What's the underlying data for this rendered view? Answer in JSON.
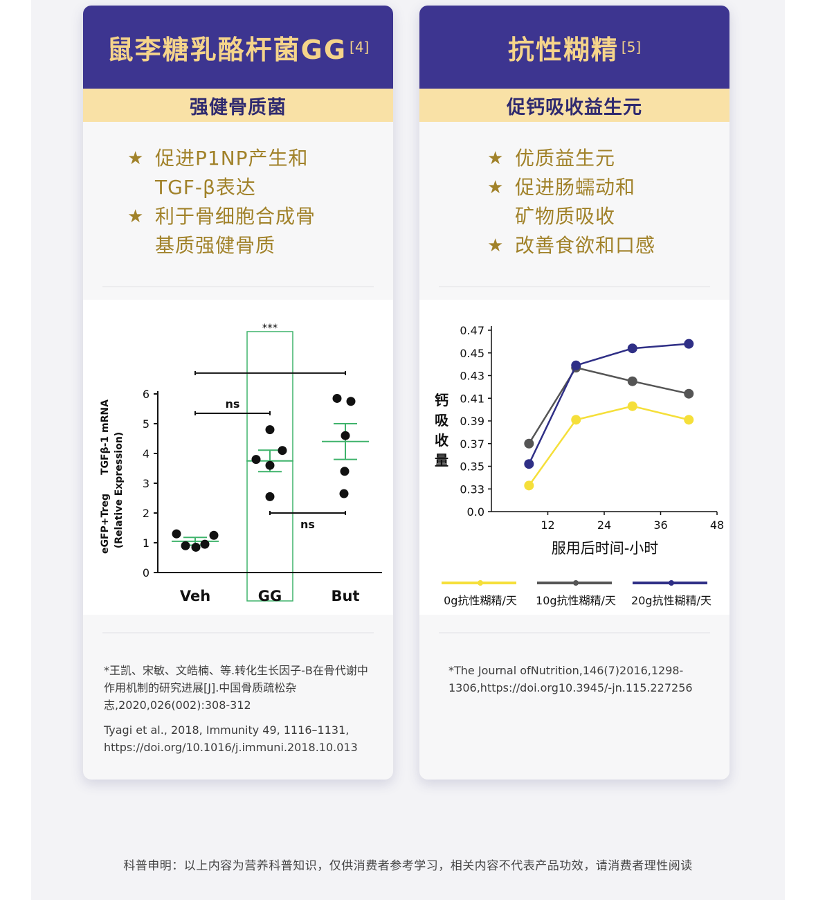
{
  "left_card": {
    "title": "鼠李糖乳酪杆菌GG",
    "title_ref": "[4]",
    "subtitle": "强健骨质菌",
    "bullets": [
      {
        "lines": [
          "促进P1NP产生和",
          "TGF-β表达"
        ]
      },
      {
        "lines": [
          "利于骨细胞合成骨",
          "基质强健骨质"
        ]
      }
    ],
    "refs": [
      "*王凯、宋敏、文皓楠、等.转化生长因子-B在骨代谢中作用机制的研究进展[J].中国骨质疏松杂志,2020,026(002):308-312",
      "Tyagi et al., 2018, Immunity 49, 1116–1131, https://doi.org/10.1016/j.immuni.2018.10.013"
    ]
  },
  "right_card": {
    "title": "抗性糊精",
    "title_ref": "[5]",
    "subtitle": "促钙吸收益生元",
    "bullets": [
      {
        "lines": [
          "优质益生元"
        ]
      },
      {
        "lines": [
          "促进肠蠕动和",
          "矿物质吸收"
        ]
      },
      {
        "lines": [
          "改善食欲和口感"
        ]
      }
    ],
    "refs": [
      "*The Journal ofNutrition,146(7)2016,1298-1306,https://doi.org10.3945/-jn.115.227256"
    ]
  },
  "disclaimer": "科普申明：以上内容为营养科普知识，仅供消费者参考学习，相关内容不代表产品功效，请消费者理性阅读",
  "colors": {
    "header_bg": "#3d3590",
    "header_text": "#f5d48a",
    "sub_bg": "#f9e1a6",
    "bullet_text": "#a1822a",
    "highlight_box": "#3fb36b",
    "series_yellow": "#f5df3a",
    "series_gray": "#555555",
    "series_navy": "#2f2f86"
  },
  "chart_data": [
    {
      "type": "scatter",
      "title": "",
      "ylabel": "eGFP+Treg TGFβ-1 mRNA (Relative Expression)",
      "ylabel_line1": "eGFP+Treg",
      "ylabel_line2": "TGFβ-1 mRNA",
      "ylabel_line3": "(Relative Expression)",
      "xlabel": "",
      "categories": [
        "Veh",
        "GG",
        "But"
      ],
      "ylim": [
        0,
        6
      ],
      "yticks": [
        0,
        1,
        2,
        3,
        4,
        5,
        6
      ],
      "points": [
        [
          1.3,
          0.9,
          0.85,
          0.95,
          1.25
        ],
        [
          3.8,
          3.6,
          2.55,
          4.1,
          4.8
        ],
        [
          5.85,
          5.75,
          4.6,
          3.4,
          2.65
        ]
      ],
      "means": [
        1.05,
        3.75,
        4.4
      ],
      "sem": [
        0.13,
        0.36,
        0.6
      ],
      "highlight_category": "GG",
      "significance": [
        {
          "from": "Veh",
          "to": "But",
          "label": "",
          "y": 6.7
        },
        {
          "from": "Veh",
          "to": "GG",
          "label": "ns",
          "y": 5.35
        },
        {
          "from": "GG",
          "to": "But",
          "label": "ns",
          "y": 2.0
        },
        {
          "from": "GG",
          "to": "GG",
          "label": "***",
          "y": 8.1
        }
      ]
    },
    {
      "type": "line",
      "title": "",
      "xlabel": "服用后时间-小时",
      "ylabel": "钙吸收量",
      "x": [
        8,
        18,
        30,
        42
      ],
      "xticks": [
        12,
        24,
        36,
        48
      ],
      "yticks": [
        0.0,
        0.33,
        0.35,
        0.37,
        0.39,
        0.41,
        0.43,
        0.45,
        0.47
      ],
      "ytick_labels": [
        "0.0",
        "0.33",
        "0.35",
        "0.37",
        "0.39",
        "0.41",
        "0.43",
        "0.45",
        "0.47"
      ],
      "series": [
        {
          "name": "0g抗性糊精/天",
          "color": "#f5df3a",
          "values": [
            0.333,
            0.391,
            0.403,
            0.391
          ]
        },
        {
          "name": "10g抗性糊精/天",
          "color": "#555555",
          "values": [
            0.37,
            0.437,
            0.425,
            0.414
          ]
        },
        {
          "name": "20g抗性糊精/天",
          "color": "#2f2f86",
          "values": [
            0.352,
            0.439,
            0.454,
            0.458
          ]
        }
      ],
      "legend": "bottom"
    }
  ]
}
